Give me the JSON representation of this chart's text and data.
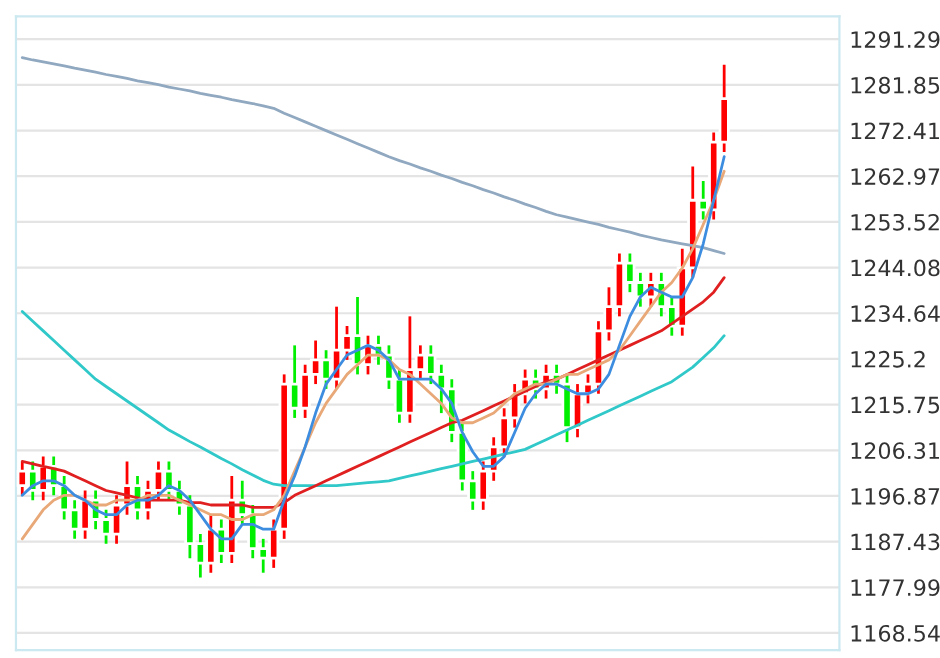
{
  "chart_data": {
    "type": "candlestick",
    "categories": [
      null,
      null,
      null,
      null,
      null,
      null,
      null,
      null,
      null,
      null,
      null,
      null,
      null,
      null,
      null,
      null,
      null,
      null,
      null,
      null,
      null,
      null,
      null,
      null,
      null,
      null,
      null,
      null,
      null,
      null,
      null,
      null,
      null,
      null,
      null,
      null,
      null,
      null,
      null,
      null,
      null,
      null,
      null,
      null,
      null,
      null,
      null,
      null,
      null,
      null,
      null,
      null,
      null,
      null,
      null,
      null,
      null,
      null,
      null,
      null,
      null,
      null,
      null,
      null,
      null,
      null,
      null,
      null
    ],
    "ohlc": [
      [
        1199,
        1204,
        1197,
        1202
      ],
      [
        1202,
        1204,
        1196,
        1198
      ],
      [
        1198,
        1205,
        1196,
        1203
      ],
      [
        1203,
        1205,
        1197,
        1199
      ],
      [
        1199,
        1201,
        1192,
        1194
      ],
      [
        1194,
        1196,
        1188,
        1190
      ],
      [
        1190,
        1198,
        1188,
        1196
      ],
      [
        1196,
        1198,
        1190,
        1192
      ],
      [
        1192,
        1194,
        1187,
        1189
      ],
      [
        1189,
        1197,
        1187,
        1195
      ],
      [
        1195,
        1204,
        1193,
        1199
      ],
      [
        1199,
        1201,
        1192,
        1194
      ],
      [
        1194,
        1200,
        1192,
        1198
      ],
      [
        1198,
        1204,
        1196,
        1202
      ],
      [
        1202,
        1204,
        1196,
        1198
      ],
      [
        1198,
        1200,
        1193,
        1195
      ],
      [
        1195,
        1197,
        1184,
        1187
      ],
      [
        1187,
        1189,
        1180,
        1183
      ],
      [
        1183,
        1193,
        1181,
        1190
      ],
      [
        1190,
        1192,
        1183,
        1185
      ],
      [
        1185,
        1201,
        1183,
        1196
      ],
      [
        1196,
        1200,
        1191,
        1193
      ],
      [
        1193,
        1195,
        1184,
        1186
      ],
      [
        1186,
        1188,
        1181,
        1184
      ],
      [
        1184,
        1192,
        1182,
        1190
      ],
      [
        1190,
        1222,
        1188,
        1220
      ],
      [
        1220,
        1228,
        1213,
        1215
      ],
      [
        1215,
        1224,
        1213,
        1222
      ],
      [
        1222,
        1229,
        1220,
        1225
      ],
      [
        1225,
        1227,
        1219,
        1221
      ],
      [
        1221,
        1236,
        1219,
        1227
      ],
      [
        1227,
        1232,
        1225,
        1230
      ],
      [
        1230,
        1238,
        1222,
        1224
      ],
      [
        1224,
        1230,
        1222,
        1228
      ],
      [
        1228,
        1230,
        1224,
        1226
      ],
      [
        1226,
        1228,
        1219,
        1221
      ],
      [
        1221,
        1223,
        1212,
        1214
      ],
      [
        1214,
        1234,
        1212,
        1223
      ],
      [
        1223,
        1228,
        1221,
        1226
      ],
      [
        1226,
        1228,
        1220,
        1222
      ],
      [
        1222,
        1224,
        1214,
        1219
      ],
      [
        1219,
        1221,
        1208,
        1210
      ],
      [
        1210,
        1212,
        1198,
        1200
      ],
      [
        1200,
        1202,
        1194,
        1196
      ],
      [
        1196,
        1204,
        1194,
        1202
      ],
      [
        1202,
        1209,
        1200,
        1207
      ],
      [
        1207,
        1215,
        1205,
        1213
      ],
      [
        1213,
        1220,
        1211,
        1218
      ],
      [
        1218,
        1223,
        1216,
        1221
      ],
      [
        1221,
        1223,
        1217,
        1219
      ],
      [
        1219,
        1224,
        1217,
        1222
      ],
      [
        1222,
        1224,
        1218,
        1220
      ],
      [
        1220,
        1222,
        1208,
        1211
      ],
      [
        1211,
        1220,
        1209,
        1218
      ],
      [
        1218,
        1222,
        1216,
        1220
      ],
      [
        1220,
        1233,
        1218,
        1231
      ],
      [
        1231,
        1240,
        1229,
        1236
      ],
      [
        1236,
        1247,
        1234,
        1245
      ],
      [
        1245,
        1247,
        1239,
        1241
      ],
      [
        1241,
        1243,
        1236,
        1238
      ],
      [
        1238,
        1243,
        1236,
        1241
      ],
      [
        1241,
        1243,
        1234,
        1236
      ],
      [
        1236,
        1238,
        1230,
        1232
      ],
      [
        1232,
        1248,
        1230,
        1244
      ],
      [
        1244,
        1265,
        1242,
        1258
      ],
      [
        1258,
        1262,
        1254,
        1256
      ],
      [
        1256,
        1272,
        1254,
        1270
      ],
      [
        1270,
        1286,
        1268,
        1279
      ]
    ],
    "series": [
      {
        "type": "line",
        "color": "#90a8c0",
        "values": [
          1287.5,
          1287,
          1286.6,
          1286.2,
          1285.8,
          1285.3,
          1284.9,
          1284.5,
          1284,
          1283.6,
          1283.2,
          1282.7,
          1282.3,
          1281.9,
          1281.4,
          1281,
          1280.6,
          1280.1,
          1279.7,
          1279.3,
          1278.8,
          1278.4,
          1278,
          1277.5,
          1277,
          1276,
          1275.1,
          1274.2,
          1273.3,
          1272.4,
          1271.5,
          1270.6,
          1269.7,
          1268.8,
          1267.9,
          1267,
          1266.2,
          1265.5,
          1264.7,
          1264,
          1263.2,
          1262.5,
          1261.7,
          1261,
          1260.2,
          1259.5,
          1258.7,
          1258,
          1257.2,
          1256.5,
          1255.7,
          1255,
          1254.5,
          1254,
          1253.5,
          1253,
          1252.4,
          1251.9,
          1251.4,
          1250.8,
          1250.3,
          1249.8,
          1249.4,
          1249,
          1248.6,
          1248.2,
          1247.6,
          1247
        ]
      },
      {
        "type": "line",
        "color": "#30c8c8",
        "values": [
          1235,
          1233,
          1231,
          1229,
          1227,
          1225,
          1223,
          1221,
          1219.5,
          1218,
          1216.5,
          1215,
          1213.5,
          1212,
          1210.5,
          1209.3,
          1208.1,
          1207,
          1205.8,
          1204.6,
          1203.5,
          1202.3,
          1201.2,
          1200.1,
          1199.3,
          1199,
          1199,
          1199,
          1199,
          1199,
          1199,
          1199.2,
          1199.4,
          1199.6,
          1199.8,
          1200,
          1200.5,
          1201,
          1201.5,
          1202,
          1202.5,
          1203,
          1203.5,
          1204,
          1204.5,
          1205,
          1205.5,
          1206,
          1206.5,
          1207.5,
          1208.5,
          1209.5,
          1210.5,
          1211.5,
          1212.5,
          1213.5,
          1214.5,
          1215.5,
          1216.5,
          1217.5,
          1218.5,
          1219.5,
          1220.5,
          1222,
          1223.5,
          1225.5,
          1227.5,
          1230
        ]
      },
      {
        "type": "line",
        "color": "#e02020",
        "values": [
          1204,
          1203.5,
          1203,
          1202.5,
          1202,
          1201,
          1200,
          1199,
          1198,
          1197.5,
          1197,
          1196.5,
          1196,
          1196,
          1196,
          1196,
          1195.5,
          1195.5,
          1195,
          1195,
          1195,
          1195,
          1194.5,
          1194.5,
          1194.5,
          1195.5,
          1197,
          1198,
          1199,
          1200,
          1201,
          1202,
          1203,
          1204,
          1205,
          1206,
          1207,
          1208,
          1209,
          1210,
          1211,
          1212,
          1212.5,
          1213.5,
          1214.5,
          1215.5,
          1216.5,
          1217.5,
          1218.5,
          1219.5,
          1220.5,
          1221,
          1222,
          1223,
          1224,
          1225,
          1226,
          1227,
          1228,
          1229,
          1230,
          1231,
          1232.5,
          1234,
          1235.5,
          1237,
          1239,
          1242
        ]
      },
      {
        "type": "line",
        "color": "#e8a878",
        "values": [
          1188,
          1191,
          1194,
          1196,
          1197,
          1197,
          1196,
          1195,
          1195,
          1196,
          1196,
          1196,
          1197,
          1197,
          1197,
          1196,
          1195,
          1194,
          1193,
          1193,
          1192,
          1192,
          1193,
          1193,
          1194,
          1197,
          1202,
          1207,
          1212,
          1216,
          1219,
          1222,
          1224,
          1226,
          1226,
          1225,
          1223,
          1222,
          1220,
          1218,
          1216,
          1213,
          1212,
          1212,
          1213,
          1214,
          1216,
          1218,
          1219,
          1220,
          1220,
          1221,
          1222,
          1222,
          1223,
          1224,
          1225,
          1227,
          1230,
          1233,
          1236,
          1239,
          1241,
          1244,
          1248,
          1253,
          1258,
          1264
        ]
      },
      {
        "type": "line",
        "color": "#3c8ce0",
        "values": [
          1197,
          1199,
          1200,
          1200,
          1199,
          1197,
          1196,
          1194,
          1193,
          1193,
          1195,
          1196,
          1196,
          1197,
          1199,
          1198,
          1196,
          1193,
          1190,
          1188,
          1188,
          1191,
          1191,
          1190,
          1190,
          1196,
          1201,
          1207,
          1214,
          1220,
          1223,
          1226,
          1227,
          1228,
          1227,
          1225,
          1221,
          1221,
          1221,
          1221,
          1219,
          1216,
          1210,
          1206,
          1203,
          1203,
          1205,
          1210,
          1215,
          1218,
          1220,
          1220,
          1219,
          1218,
          1218,
          1219,
          1222,
          1228,
          1234,
          1238,
          1240,
          1239,
          1238,
          1238,
          1242,
          1249,
          1258,
          1267
        ]
      }
    ],
    "ylim": [
      1165,
      1296
    ],
    "yticks": [
      1168.54,
      1177.99,
      1187.43,
      1196.87,
      1206.31,
      1215.75,
      1225.2,
      1234.64,
      1244.08,
      1253.52,
      1262.97,
      1272.41,
      1281.85,
      1291.29
    ],
    "tick_labels": "y",
    "grid": "y"
  }
}
